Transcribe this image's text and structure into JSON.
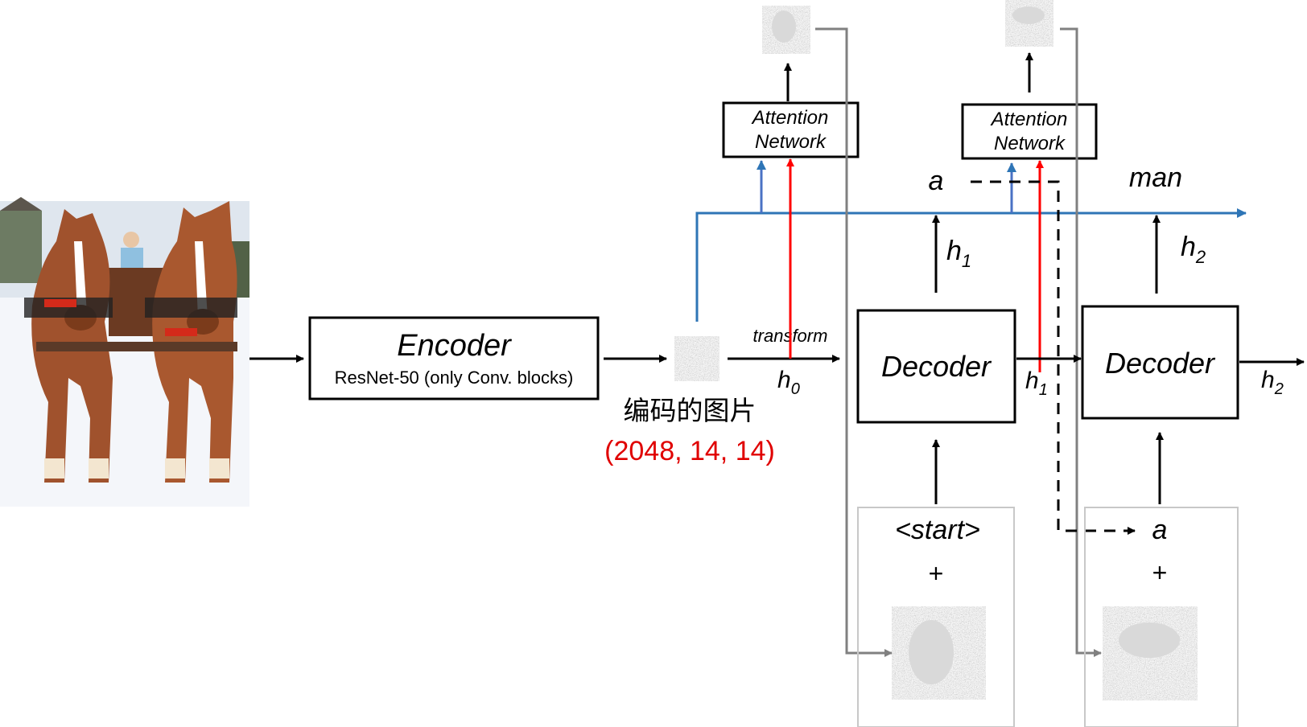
{
  "encoder": {
    "title": "Encoder",
    "subtitle": "ResNet-50 (only Conv. blocks)"
  },
  "encoded": {
    "label": "编码的图片",
    "shape": "(2048, 14, 14)"
  },
  "transform_label": "transform",
  "attention": {
    "line1": "Attention",
    "line2": "Network"
  },
  "decoder": {
    "label": "Decoder"
  },
  "hidden": {
    "h0_base": "h",
    "h0_sub": "0",
    "h1_base": "h",
    "h1_sub": "1",
    "h2_base": "h",
    "h2_sub": "2"
  },
  "words": {
    "w1": "a",
    "w2": "man",
    "start": "<start>",
    "plus": "+",
    "prev_word": "a"
  },
  "colors": {
    "blue": "#2e75b6",
    "red": "#ff0000",
    "gray": "#808080",
    "black": "#000000",
    "shape_text_red": "#e00000"
  },
  "photo": {
    "subject": "two draft horses pulling a sleigh in snow"
  }
}
